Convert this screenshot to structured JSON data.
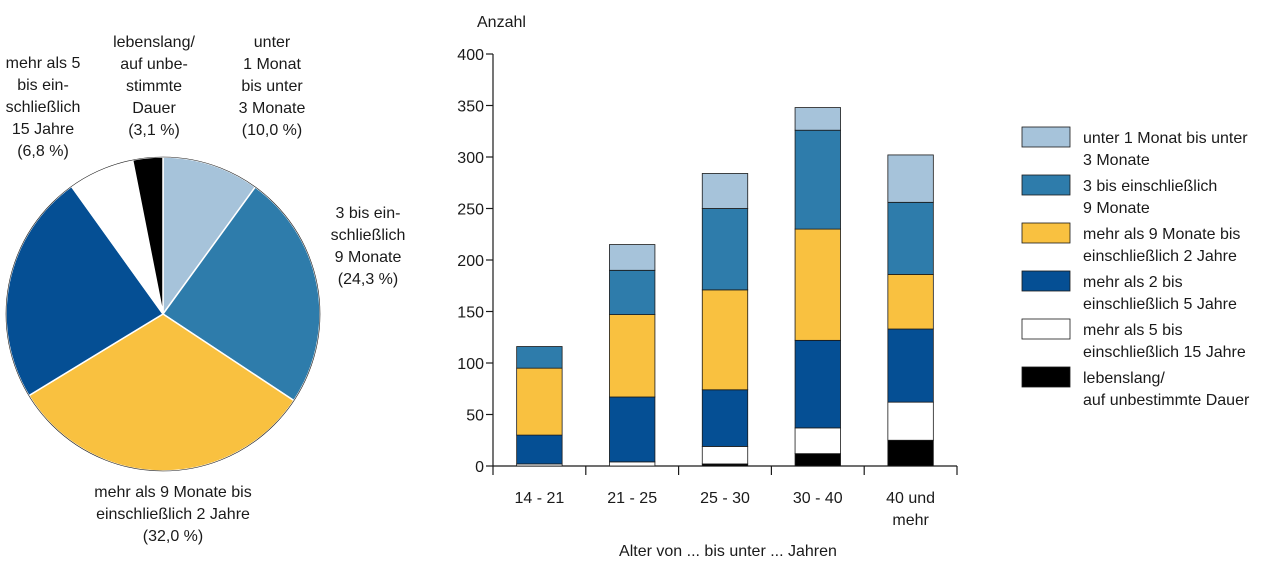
{
  "colors": {
    "under3m": "#a6c3da",
    "m3to9": "#2e7cab",
    "m9to2y": "#f9c140",
    "y2to5": "#054f94",
    "y5to15": "#ffffff",
    "life": "#000000"
  },
  "chart_data": [
    {
      "type": "pie",
      "slices": [
        {
          "key": "under3m",
          "value": 10.0,
          "label_lines": [
            "unter",
            "1 Monat",
            "bis unter",
            "3 Monate",
            "(10,0 %)"
          ]
        },
        {
          "key": "m3to9",
          "value": 24.3,
          "label_lines": [
            "3 bis ein-",
            "schließlich",
            "9 Monate",
            "(24,3 %)"
          ]
        },
        {
          "key": "m9to2y",
          "value": 32.0,
          "label_lines": [
            "mehr als 9 Monate bis",
            "einschließlich 2 Jahre",
            "(32,0 %)"
          ]
        },
        {
          "key": "y2to5",
          "value": 23.8,
          "label_lines": []
        },
        {
          "key": "y5to15",
          "value": 6.8,
          "label_lines": [
            "mehr als 5",
            "bis ein-",
            "schließlich",
            "15 Jahre",
            "(6,8 %)"
          ]
        },
        {
          "key": "life",
          "value": 3.1,
          "label_lines": [
            "lebenslang/",
            "auf unbe-",
            "stimmte",
            "Dauer",
            "(3,1 %)"
          ]
        }
      ]
    },
    {
      "type": "bar",
      "stacked": true,
      "ylabel": "Anzahl",
      "xlabel": "Alter von ... bis unter ... Jahren",
      "ylim": [
        0,
        400
      ],
      "yticks": [
        "0",
        "50",
        "100",
        "150",
        "200",
        "250",
        "300",
        "350",
        "400"
      ],
      "categories": [
        [
          "14 - 21"
        ],
        [
          "21 - 25"
        ],
        [
          "25 - 30"
        ],
        [
          "30 - 40"
        ],
        [
          "40 und",
          "mehr"
        ]
      ],
      "series": [
        {
          "key": "life",
          "name": "lebenslang/ auf unbestimmte Dauer",
          "values": [
            0,
            0,
            2,
            12,
            25
          ]
        },
        {
          "key": "y5to15",
          "name": "mehr als 5 bis einschließlich 15 Jahre",
          "values": [
            2,
            4,
            17,
            25,
            37
          ]
        },
        {
          "key": "y2to5",
          "name": "mehr als 2 bis einschließlich 5 Jahre",
          "values": [
            28,
            63,
            55,
            85,
            71
          ]
        },
        {
          "key": "m9to2y",
          "name": "mehr als 9 Monate bis einschließlich 2 Jahre",
          "values": [
            65,
            80,
            97,
            108,
            53
          ]
        },
        {
          "key": "m3to9",
          "name": "3 bis einschließlich 9 Monate",
          "values": [
            21,
            43,
            79,
            96,
            70
          ]
        },
        {
          "key": "under3m",
          "name": "unter 1 Monat bis unter 3 Monate",
          "values": [
            0,
            25,
            34,
            22,
            46
          ]
        }
      ],
      "legend": [
        {
          "key": "under3m",
          "lines": [
            "unter 1 Monat bis unter",
            "3 Monate"
          ]
        },
        {
          "key": "m3to9",
          "lines": [
            "3 bis einschließlich",
            "9 Monate"
          ]
        },
        {
          "key": "m9to2y",
          "lines": [
            "mehr als 9 Monate bis",
            "einschließlich 2 Jahre"
          ]
        },
        {
          "key": "y2to5",
          "lines": [
            "mehr als 2 bis",
            "einschließlich 5 Jahre"
          ]
        },
        {
          "key": "y5to15",
          "lines": [
            "mehr als 5 bis",
            "einschließlich 15 Jahre"
          ]
        },
        {
          "key": "life",
          "lines": [
            "lebenslang/",
            "auf unbestimmte Dauer"
          ]
        }
      ],
      "legend_position": "right"
    }
  ]
}
